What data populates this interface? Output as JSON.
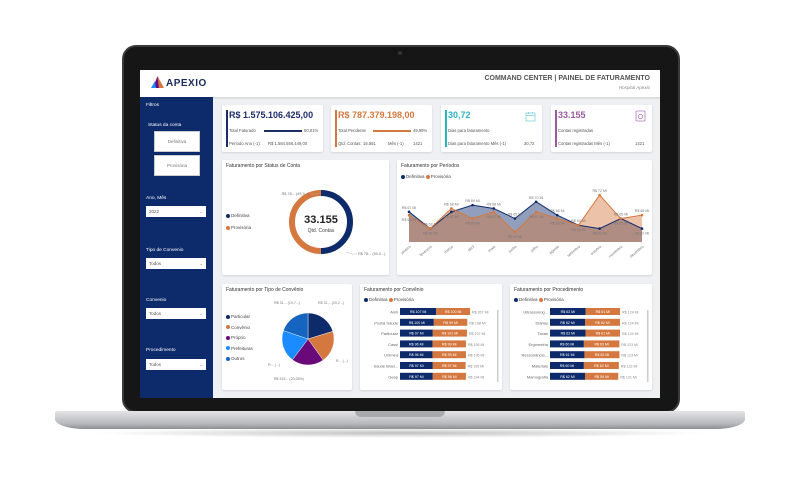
{
  "header": {
    "logo": "APEXIO",
    "title": "COMMAND CENTER | PAINEL DE FATURAMENTO",
    "subtitle": "Hospital Apexio"
  },
  "sidebar": {
    "title": "Filtros",
    "status_label": "Status da conta",
    "status_buttons": [
      "Definitiva",
      "Provisória"
    ],
    "filters": [
      {
        "label": "Ano, Mês",
        "value": "2022"
      },
      {
        "label": "Tipo de Convenio",
        "value": "Todos"
      },
      {
        "label": "Convenio",
        "value": "Todos"
      },
      {
        "label": "Procedimento",
        "value": "Todos"
      }
    ]
  },
  "kpis": [
    {
      "value": "R$ 1.575.106.425,00",
      "label": "Total Faturado",
      "pct": "50,01%",
      "pct_value": 50.01,
      "sub_label": "Período Ano (-1):",
      "sub_value": "R$ 1.584.556.449,00",
      "color": "#1c2c6b"
    },
    {
      "value": "R$ 787.379.198,00",
      "label": "Total Pendente",
      "pct": "49,99%",
      "pct_value": 49.99,
      "sub_label": "Qtd. Contas:",
      "sub_value": "16.581",
      "sub_label2": "Mês (-1)",
      "sub_value2": "1421",
      "color": "#d4783f"
    },
    {
      "value": "30,72",
      "label": "Dias para faturamento",
      "sub_label": "Dias para faturamento Mês (-1)",
      "sub_value": "30,72",
      "color": "#2bb3bf",
      "icon": "calendar-icon"
    },
    {
      "value": "33.155",
      "label": "Contas registradas",
      "sub_label": "Contas registradas Mês (-1)",
      "sub_value": "1421",
      "color": "#9b5aa0",
      "icon": "document-icon"
    }
  ],
  "colors": {
    "definitiva": "#0d2a6b",
    "provisoria": "#d4783f"
  },
  "chart_data": [
    {
      "type": "donut",
      "title": "Faturamento por Status de Conta",
      "center_value": "33.155",
      "center_label": "Qtd. Contas",
      "legend": [
        "Definitiva",
        "Provisória"
      ],
      "values": [
        50.01,
        49.99
      ],
      "labels": [
        "R$ 78... (50,0...)",
        "R$ 78... (49,9...)"
      ]
    },
    {
      "type": "area",
      "title": "Faturamento por Períodos",
      "legend": [
        "Definitiva",
        "Provisória"
      ],
      "categories": [
        "janeiro",
        "fevereiro",
        "março",
        "abril",
        "maio",
        "junho",
        "julho",
        "agosto",
        "setembro",
        "outubro",
        "novembro",
        "dezembro"
      ],
      "series": [
        {
          "name": "Definitiva",
          "values": [
            67,
            62,
            67,
            69,
            68,
            65,
            70,
            66,
            63,
            62,
            65,
            62
          ]
        },
        {
          "name": "Provisória",
          "values": [
            66,
            62,
            68,
            65,
            67,
            61,
            67,
            65,
            63,
            72,
            65,
            66
          ]
        }
      ],
      "unit": "Mi",
      "ylim": [
        58,
        75
      ]
    },
    {
      "type": "pie",
      "title": "Faturamento por Tipo de Convênio",
      "legend": [
        "Particular",
        "Convênio",
        "Próprio",
        "Prefeituras",
        "Outros"
      ],
      "values": [
        20.2,
        19.8,
        20.05,
        20.0,
        19.7
      ],
      "labels": [
        "R$ 31... (20,2...)",
        "R... (...)",
        "R$ 315... (20,05%)",
        "R... (...)",
        "R$ 31... (19,7...)"
      ],
      "colors": [
        "#0d2a6b",
        "#d4783f",
        "#6a0a7a",
        "#1a8cff",
        "#1565c0"
      ]
    },
    {
      "type": "stacked-bar",
      "title": "Faturamento por Convênio",
      "legend": [
        "Definitiva",
        "Provisória"
      ],
      "categories": [
        "Amil",
        "Postal Saúde",
        "Particular",
        "Cassi",
        "Unimed",
        "Saúde Brad...",
        "Geap"
      ],
      "series": [
        {
          "name": "Definitiva",
          "values": [
            107,
            100,
            97,
            96,
            96,
            97,
            97
          ]
        },
        {
          "name": "Provisória",
          "values": [
            100,
            99,
            101,
            99,
            99,
            97,
            98
          ]
        }
      ],
      "totals": [
        207,
        198,
        197,
        195,
        195,
        195,
        194
      ],
      "unit": "Mi"
    },
    {
      "type": "stacked-bar",
      "title": "Faturamento por Procedimento",
      "legend": [
        "Definitiva",
        "Provisória"
      ],
      "categories": [
        "Ultrassonog...",
        "Diárias",
        "Taxas",
        "Ergometria",
        "Ressonância...",
        "Materiais",
        "Mamografia"
      ],
      "series": [
        {
          "name": "Definitiva",
          "values": [
            63,
            62,
            63,
            60,
            61,
            60,
            62
          ]
        },
        {
          "name": "Provisória",
          "values": [
            61,
            62,
            61,
            63,
            62,
            62,
            59
          ]
        }
      ],
      "totals": [
        124,
        124,
        124,
        123,
        123,
        122,
        121
      ],
      "unit": "Mi"
    }
  ]
}
